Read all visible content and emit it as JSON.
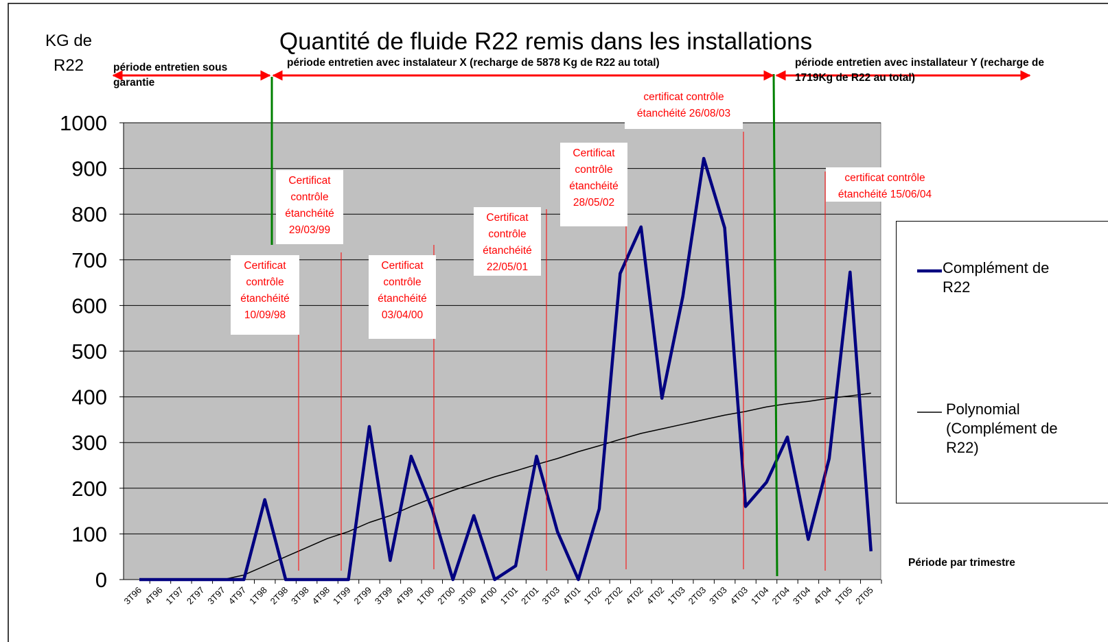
{
  "chart_data": {
    "type": "line",
    "title": "Quantité de fluide R22 remis dans les installations",
    "y_label": "KG de R22",
    "x_label": "Période par trimestre",
    "categories": [
      "3T96",
      "4T96",
      "1T97",
      "2T97",
      "3T97",
      "4T97",
      "1T98",
      "2T98",
      "3T98",
      "4T98",
      "1T99",
      "2T99",
      "3T99",
      "4T99",
      "1T00",
      "2T00",
      "3T00",
      "4T00",
      "1T01",
      "2T01",
      "3T03",
      "4T01",
      "1T02",
      "2T02",
      "4T02",
      "4T02",
      "1T03",
      "2T03",
      "3T03",
      "4T03",
      "1T04",
      "2T04",
      "3T04",
      "4T04",
      "1T05",
      "2T05"
    ],
    "series": [
      {
        "name": "Complément de R22",
        "color": "#000080",
        "values": [
          0,
          0,
          0,
          0,
          0,
          0,
          175,
          0,
          0,
          0,
          0,
          335,
          42,
          270,
          155,
          0,
          140,
          0,
          30,
          270,
          105,
          0,
          155,
          670,
          772,
          397,
          620,
          922,
          770,
          160,
          213,
          312,
          88,
          265,
          673,
          62
        ]
      },
      {
        "name": "Polynomial (Complément de R22)",
        "color": "#000000",
        "values": [
          0,
          0,
          0,
          0,
          0,
          10,
          30,
          50,
          70,
          90,
          105,
          125,
          140,
          160,
          178,
          195,
          210,
          225,
          238,
          252,
          265,
          280,
          293,
          307,
          320,
          330,
          340,
          350,
          360,
          368,
          378,
          385,
          390,
          397,
          402,
          408
        ]
      }
    ],
    "ylim": [
      0,
      1000
    ],
    "yticks": [
      0,
      100,
      200,
      300,
      400,
      500,
      600,
      700,
      800,
      900,
      1000
    ],
    "grid": true,
    "periods": [
      "période entretien sous garantie",
      "période entretien avec instalateur X (recharge de 5878 Kg de R22 au total)",
      "période entretien avec installateur Y (recharge de 1719Kg de R22 au total)"
    ],
    "certificates": [
      "Certificat contrôle étanchéité 10/09/98",
      "Certificat contrôle étanchéité 29/03/99",
      "Certificat contrôle étanchéité 03/04/00",
      "Certificat contrôle étanchéité 22/05/01",
      "Certificat contrôle étanchéité 28/05/02",
      "certificat contrôle étanchéité 26/08/03",
      "certificat contrôle étanchéité 15/06/04"
    ]
  }
}
